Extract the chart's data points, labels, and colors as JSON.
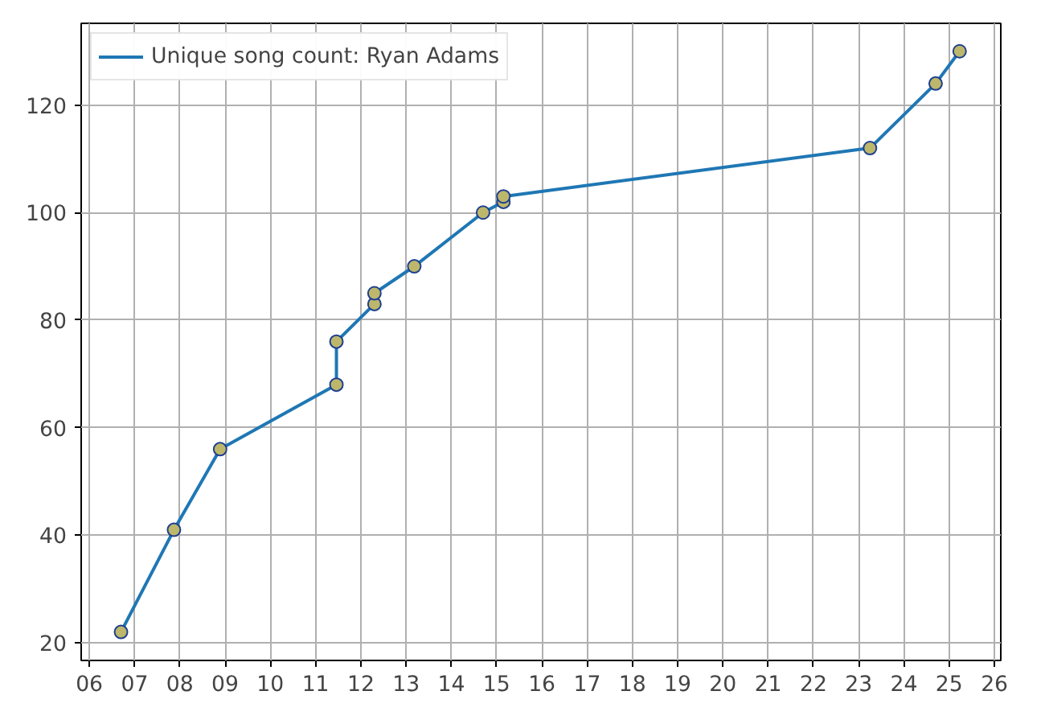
{
  "chart_data": {
    "type": "line",
    "x": [
      2006.7,
      2007.87,
      2008.89,
      2011.46,
      2011.46,
      2012.3,
      2012.3,
      2013.18,
      2014.7,
      2015.15,
      2015.15,
      2023.25,
      2024.7,
      2025.23
    ],
    "series": [
      {
        "name": "Unique song count: Ryan Adams",
        "color": "#1f77b4",
        "values": [
          22,
          41,
          56,
          68,
          76,
          83,
          85,
          90,
          100,
          102,
          103,
          112,
          124,
          130
        ]
      }
    ],
    "xlim": [
      2005.82,
      2026.14
    ],
    "xticks": [
      {
        "value": 2006,
        "label": "06"
      },
      {
        "value": 2007,
        "label": "07"
      },
      {
        "value": 2008,
        "label": "08"
      },
      {
        "value": 2009,
        "label": "09"
      },
      {
        "value": 2010,
        "label": "10"
      },
      {
        "value": 2011,
        "label": "11"
      },
      {
        "value": 2012,
        "label": "12"
      },
      {
        "value": 2013,
        "label": "13"
      },
      {
        "value": 2014,
        "label": "14"
      },
      {
        "value": 2015,
        "label": "15"
      },
      {
        "value": 2016,
        "label": "16"
      },
      {
        "value": 2017,
        "label": "17"
      },
      {
        "value": 2018,
        "label": "18"
      },
      {
        "value": 2019,
        "label": "19"
      },
      {
        "value": 2020,
        "label": "20"
      },
      {
        "value": 2021,
        "label": "21"
      },
      {
        "value": 2022,
        "label": "22"
      },
      {
        "value": 2023,
        "label": "23"
      },
      {
        "value": 2024,
        "label": "24"
      },
      {
        "value": 2025,
        "label": "25"
      },
      {
        "value": 2026,
        "label": "26"
      }
    ],
    "ylim": [
      16.7,
      135.2
    ],
    "yticks": [
      20,
      40,
      60,
      80,
      100,
      120
    ],
    "grid": true,
    "legend": "top left",
    "marker": "circle",
    "line_style": "solid"
  }
}
